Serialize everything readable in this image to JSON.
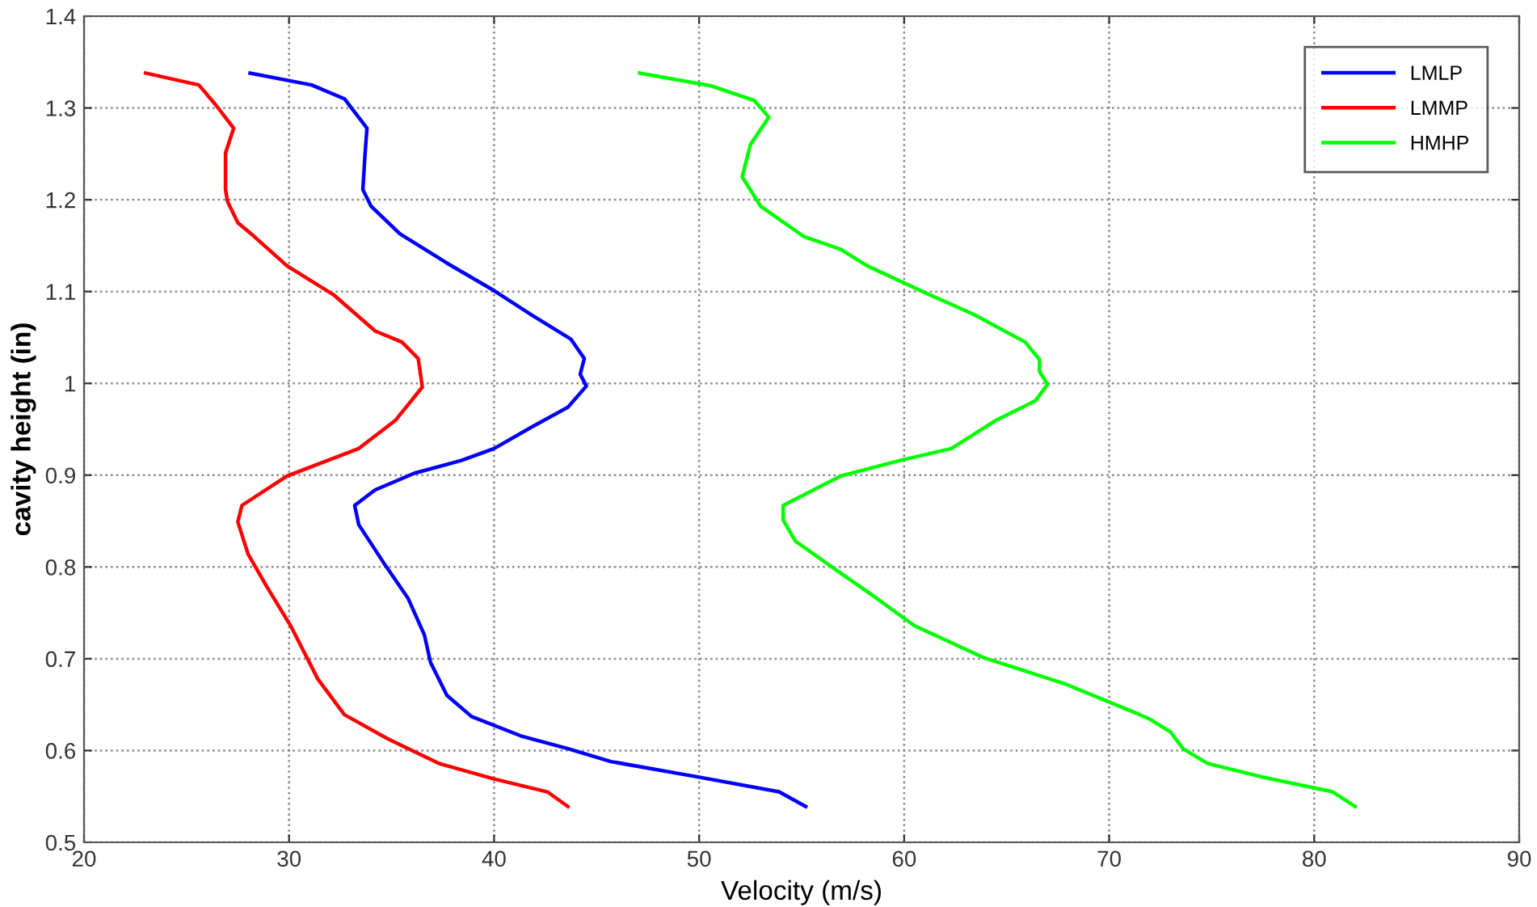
{
  "chart_data": {
    "type": "line",
    "xlabel": "Velocity (m/s)",
    "ylabel": "cavity height (in)",
    "xlim": [
      20,
      90
    ],
    "ylim": [
      0.5,
      1.4
    ],
    "xticks": [
      20,
      30,
      40,
      50,
      60,
      70,
      80,
      90
    ],
    "yticks": [
      0.5,
      0.6,
      0.7,
      0.8,
      0.9,
      1,
      1.1,
      1.2,
      1.3,
      1.4
    ],
    "grid": true,
    "legend": "top right",
    "line_style": "solid",
    "marker": "none",
    "series": [
      {
        "name": "LMLP",
        "color": "#0000ff",
        "x": [
          28.1,
          31.1,
          32.7,
          33.8,
          33.7,
          33.6,
          34.0,
          35.4,
          37.7,
          40.0,
          41.8,
          43.75,
          44.4,
          44.2,
          44.5,
          43.6,
          41.8,
          40.0,
          38.4,
          36.1,
          34.2,
          33.2,
          33.4,
          34.6,
          35.8,
          36.6,
          36.9,
          37.7,
          38.9,
          41.3,
          43.6,
          45.7,
          50.0,
          53.9,
          55.2
        ],
        "values": [
          1.338,
          1.325,
          1.31,
          1.278,
          1.248,
          1.211,
          1.193,
          1.163,
          1.131,
          1.101,
          1.075,
          1.048,
          1.027,
          1.01,
          0.997,
          0.974,
          0.952,
          0.929,
          0.916,
          0.902,
          0.884,
          0.867,
          0.846,
          0.805,
          0.766,
          0.726,
          0.696,
          0.66,
          0.637,
          0.616,
          0.602,
          0.588,
          0.571,
          0.555,
          0.539
        ]
      },
      {
        "name": "LMMP",
        "color": "#ff0000",
        "x": [
          23.0,
          25.6,
          26.4,
          27.3,
          26.9,
          26.9,
          27.0,
          27.5,
          28.3,
          29.9,
          32.2,
          34.2,
          35.5,
          36.3,
          36.5,
          35.2,
          33.4,
          29.9,
          27.7,
          27.5,
          28.0,
          28.9,
          30.1,
          31.4,
          32.7,
          34.8,
          37.3,
          40.0,
          42.6,
          43.6
        ],
        "values": [
          1.338,
          1.325,
          1.304,
          1.278,
          1.251,
          1.211,
          1.198,
          1.175,
          1.16,
          1.128,
          1.096,
          1.057,
          1.045,
          1.027,
          0.996,
          0.96,
          0.929,
          0.899,
          0.867,
          0.849,
          0.814,
          0.779,
          0.735,
          0.678,
          0.639,
          0.613,
          0.586,
          0.569,
          0.555,
          0.539
        ]
      },
      {
        "name": "HMHP",
        "color": "#00ff00",
        "x": [
          47.1,
          50.6,
          52.7,
          53.4,
          52.5,
          52.1,
          53.0,
          55.1,
          56.9,
          58.2,
          61.1,
          63.4,
          65.9,
          66.6,
          66.6,
          67.0,
          66.4,
          64.5,
          62.3,
          59.8,
          56.9,
          54.1,
          54.1,
          54.7,
          56.6,
          58.4,
          60.5,
          63.9,
          67.8,
          71.5,
          72.0,
          73.0,
          73.6,
          74.8,
          77.5,
          80.9,
          82.0
        ],
        "values": [
          1.338,
          1.324,
          1.308,
          1.29,
          1.26,
          1.225,
          1.193,
          1.16,
          1.146,
          1.128,
          1.098,
          1.075,
          1.045,
          1.026,
          1.013,
          0.999,
          0.981,
          0.96,
          0.929,
          0.916,
          0.899,
          0.867,
          0.851,
          0.828,
          0.798,
          0.77,
          0.736,
          0.701,
          0.673,
          0.639,
          0.634,
          0.62,
          0.602,
          0.586,
          0.571,
          0.555,
          0.539
        ]
      }
    ]
  }
}
